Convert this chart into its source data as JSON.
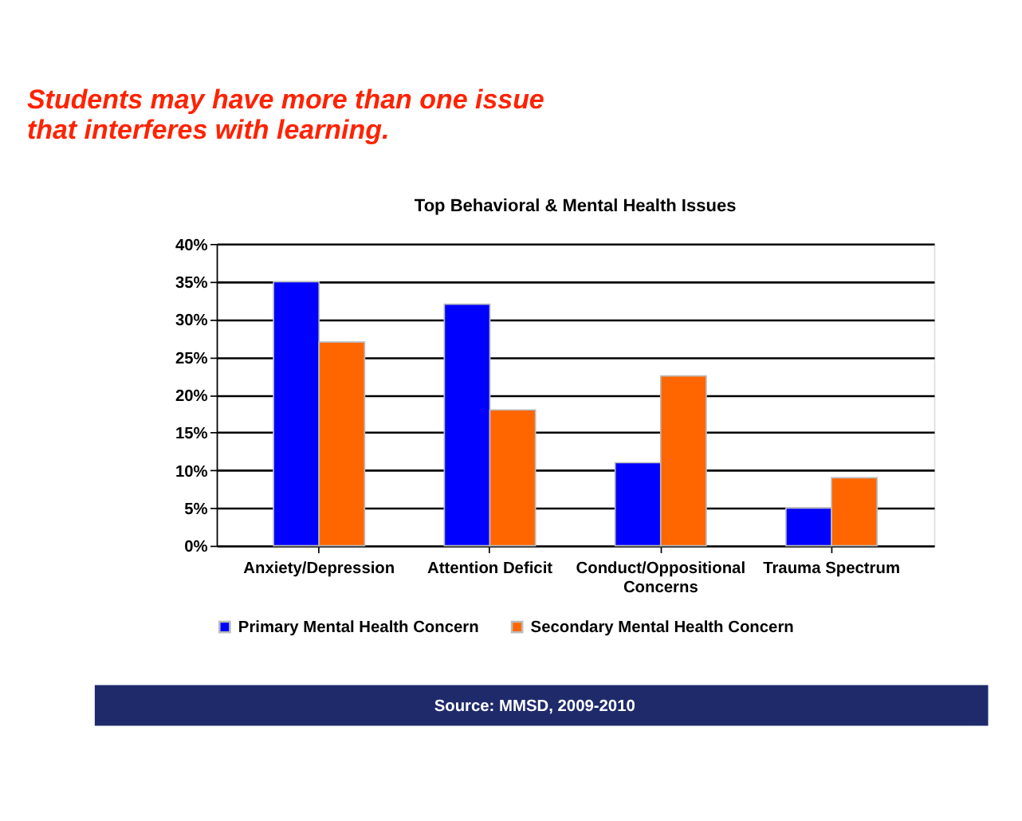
{
  "chart_data": {
    "type": "bar",
    "title": "Students may have more than one issue that interferes with learning.",
    "subtitle": "Top Behavioral & Mental Health Issues",
    "categories": [
      "Anxiety/Depression",
      "Attention Deficit",
      "Conduct/Oppositional Concerns",
      "Trauma Spectrum"
    ],
    "series": [
      {
        "name": "Primary Mental Health Concern",
        "color": "#0000ff",
        "values": [
          35,
          32,
          11,
          5
        ]
      },
      {
        "name": "Secondary Mental Health Concern",
        "color": "#ff6600",
        "values": [
          27,
          18,
          22.5,
          9
        ]
      }
    ],
    "ylim": [
      0,
      40
    ],
    "yticks": [
      {
        "value": 0,
        "label": "0%"
      },
      {
        "value": 5,
        "label": "5%"
      },
      {
        "value": 10,
        "label": "10%"
      },
      {
        "value": 15,
        "label": "15%"
      },
      {
        "value": 20,
        "label": "20%"
      },
      {
        "value": 25,
        "label": "25%"
      },
      {
        "value": 30,
        "label": "30%"
      },
      {
        "value": 35,
        "label": "35%"
      },
      {
        "value": 40,
        "label": "40%"
      }
    ],
    "grid": "y",
    "legend": "bottom",
    "annotations": [
      "Source:  MMSD, 2009-2010"
    ]
  }
}
